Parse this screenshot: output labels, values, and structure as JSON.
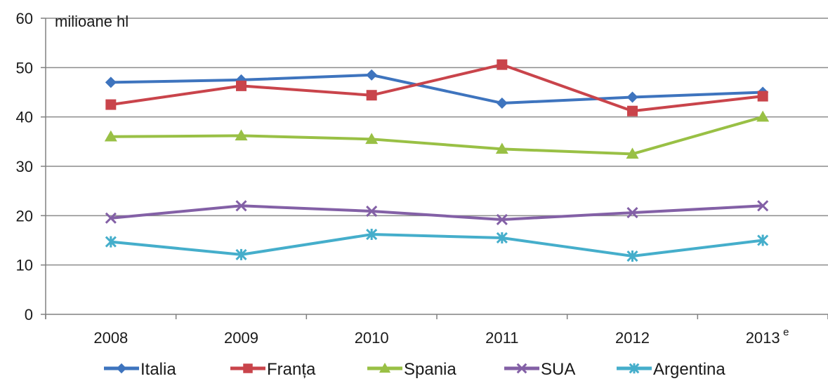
{
  "chart_data": {
    "type": "line",
    "unit_label": "milioane hl",
    "categories": [
      "2008",
      "2009",
      "2010",
      "2011",
      "2012",
      "2013"
    ],
    "last_category_superscript": "e",
    "ylim": [
      0,
      60
    ],
    "yticks": [
      "0",
      "10",
      "20",
      "30",
      "40",
      "50",
      "60"
    ],
    "grid": true,
    "legend_position": "bottom",
    "series": [
      {
        "name": "Italia",
        "values": [
          47,
          47.5,
          48.5,
          42.8,
          44,
          45
        ],
        "color": "#3e74be",
        "marker": "diamond"
      },
      {
        "name": "Franța",
        "values": [
          42.5,
          46.3,
          44.4,
          50.6,
          41.2,
          44.2
        ],
        "color": "#c9444b",
        "marker": "square"
      },
      {
        "name": "Spania",
        "values": [
          36,
          36.2,
          35.5,
          33.5,
          32.5,
          40
        ],
        "color": "#99c045",
        "marker": "triangle"
      },
      {
        "name": "SUA",
        "values": [
          19.5,
          22,
          20.9,
          19.2,
          20.6,
          22
        ],
        "color": "#8360a6",
        "marker": "x"
      },
      {
        "name": "Argentina",
        "values": [
          14.7,
          12.1,
          16.2,
          15.5,
          11.8,
          15
        ],
        "color": "#45aecb",
        "marker": "star"
      }
    ]
  }
}
